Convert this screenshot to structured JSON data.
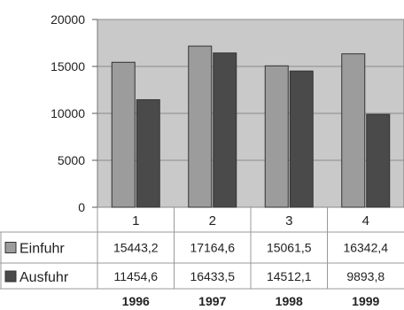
{
  "chart_data": {
    "type": "bar",
    "categories": [
      "1",
      "2",
      "3",
      "4"
    ],
    "years": [
      "1996",
      "1997",
      "1998",
      "1999"
    ],
    "ylim": [
      0,
      20000
    ],
    "yticks": [
      "0",
      "5000",
      "10000",
      "15000",
      "20000"
    ],
    "grid": true,
    "legend": "table-left",
    "plot_background": "#c9c9c9",
    "series": [
      {
        "name": "Einfuhr",
        "color": "#9c9c9c",
        "values": [
          15443.2,
          17164.6,
          15061.5,
          16342.4
        ],
        "labels": [
          "15443,2",
          "17164,6",
          "15061,5",
          "16342,4"
        ]
      },
      {
        "name": "Ausfuhr",
        "color": "#4a4a4a",
        "values": [
          11454.6,
          16433.5,
          14512.1,
          9893.8
        ],
        "labels": [
          "11454,6",
          "16433,5",
          "14512,1",
          "9893,8"
        ]
      }
    ]
  }
}
